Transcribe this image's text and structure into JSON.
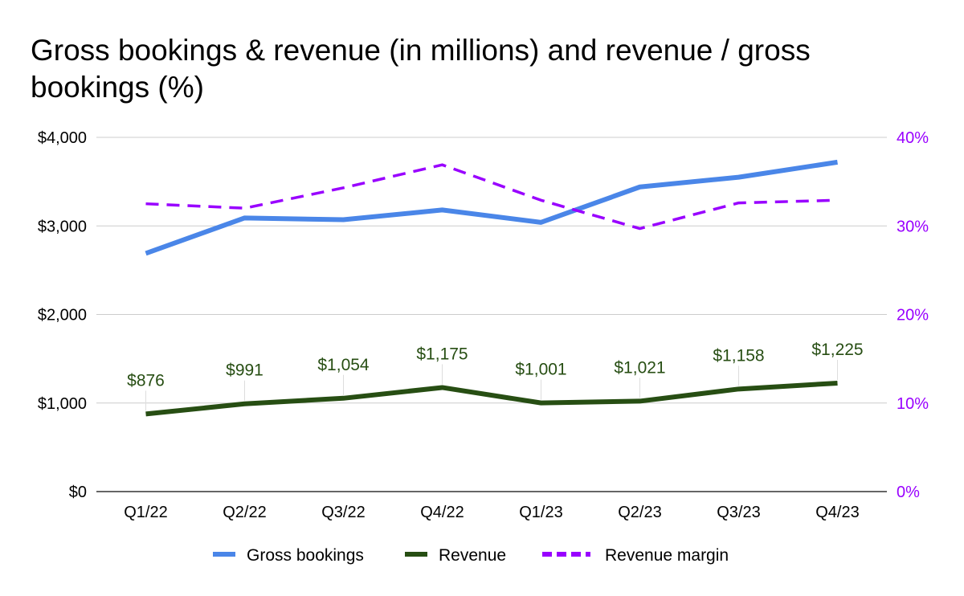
{
  "chart_data": {
    "type": "line",
    "title": "Gross bookings & revenue (in millions) and revenue / gross bookings (%)",
    "categories": [
      "Q1/22",
      "Q2/22",
      "Q3/22",
      "Q4/22",
      "Q1/23",
      "Q2/23",
      "Q3/23",
      "Q4/23"
    ],
    "y_left": {
      "ticks": [
        "$0",
        "$1,000",
        "$2,000",
        "$3,000",
        "$4,000"
      ],
      "range": [
        0,
        4000
      ]
    },
    "y_right": {
      "ticks": [
        "0%",
        "10%",
        "20%",
        "30%",
        "40%"
      ],
      "range": [
        0,
        40
      ]
    },
    "series": [
      {
        "name": "Gross bookings",
        "axis": "left",
        "color": "#4a86e8",
        "style": "solid",
        "values": [
          2690,
          3090,
          3070,
          3180,
          3040,
          3440,
          3550,
          3720
        ]
      },
      {
        "name": "Revenue",
        "axis": "left",
        "color": "#274e13",
        "style": "solid",
        "values": [
          876,
          991,
          1054,
          1175,
          1001,
          1021,
          1158,
          1225
        ],
        "data_labels": [
          "$876",
          "$991",
          "$1,054",
          "$1,175",
          "$1,001",
          "$1,021",
          "$1,158",
          "$1,225"
        ]
      },
      {
        "name": "Revenue margin",
        "axis": "right",
        "color": "#9900ff",
        "style": "dashed",
        "values": [
          32.5,
          32.0,
          34.3,
          36.9,
          32.9,
          29.7,
          32.6,
          32.9
        ]
      }
    ],
    "grid": true,
    "legend_position": "bottom"
  }
}
